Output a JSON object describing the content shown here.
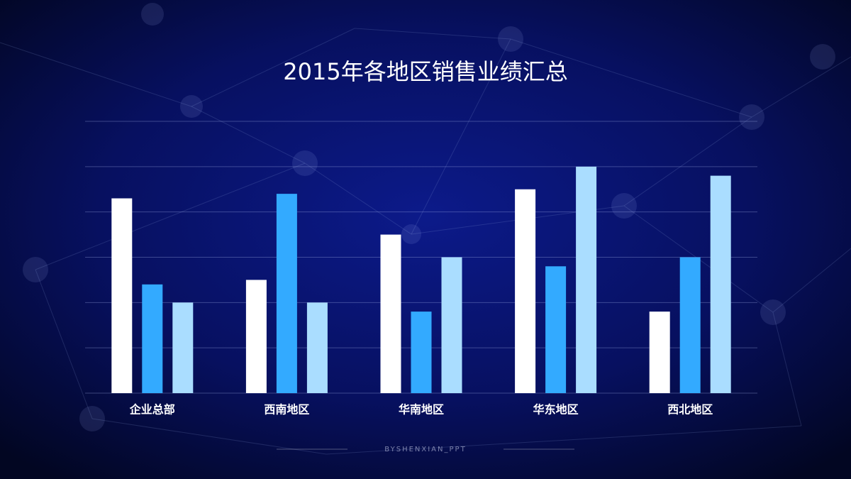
{
  "chart_data": {
    "type": "bar",
    "title": "2015年各地区销售业绩汇总",
    "categories": [
      "企业总部",
      "西南地区",
      "华南地区",
      "华东地区",
      "西北地区"
    ],
    "series": [
      {
        "color": "#ffffff",
        "values": [
          4.3,
          2.5,
          3.5,
          4.5,
          1.8
        ]
      },
      {
        "color": "#33aaff",
        "values": [
          2.4,
          4.4,
          1.8,
          2.8,
          3.0
        ]
      },
      {
        "color": "#aaddff",
        "values": [
          2.0,
          2.0,
          3.0,
          5.0,
          4.8
        ]
      }
    ],
    "ylim": [
      0,
      6
    ],
    "yticks": [
      0,
      1,
      2,
      3,
      4,
      5,
      6
    ],
    "grid": true,
    "footer": "BYSHENXIAN_PPT"
  }
}
